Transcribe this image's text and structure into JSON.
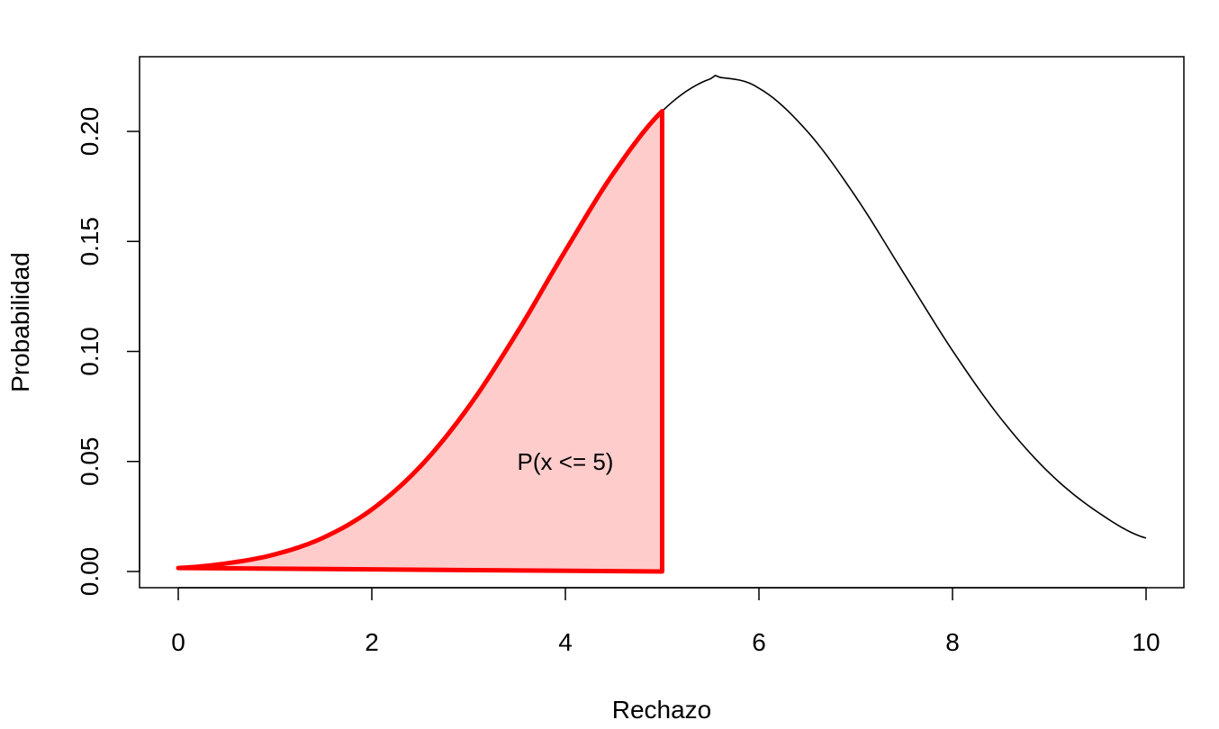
{
  "chart_data": {
    "type": "area",
    "xlabel": "Rechazo",
    "ylabel": "Probabilidad",
    "xlim": [
      0,
      10
    ],
    "ylim": [
      0,
      0.225
    ],
    "x_ticks": [
      {
        "value": 0,
        "label": "0"
      },
      {
        "value": 2,
        "label": "2"
      },
      {
        "value": 4,
        "label": "4"
      },
      {
        "value": 6,
        "label": "6"
      },
      {
        "value": 8,
        "label": "8"
      },
      {
        "value": 10,
        "label": "10"
      }
    ],
    "y_ticks": [
      {
        "value": 0.0,
        "label": "0.00"
      },
      {
        "value": 0.05,
        "label": "0.05"
      },
      {
        "value": 0.1,
        "label": "0.10"
      },
      {
        "value": 0.15,
        "label": "0.15"
      },
      {
        "value": 0.2,
        "label": "0.20"
      }
    ],
    "grid": false,
    "series": [
      {
        "role": "density-curve",
        "color": "#000000",
        "x": [
          0,
          0.5,
          1,
          1.5,
          2,
          2.5,
          3,
          3.5,
          4,
          4.5,
          5,
          5.5,
          5.6,
          6,
          6.5,
          7,
          7.5,
          8,
          8.5,
          9,
          9.5,
          10
        ],
        "y": [
          0.0016,
          0.0037,
          0.0078,
          0.0154,
          0.0282,
          0.0477,
          0.0748,
          0.1085,
          0.1458,
          0.1812,
          0.2092,
          0.2239,
          0.2245,
          0.2196,
          0.2,
          0.1703,
          0.1353,
          0.1004,
          0.0695,
          0.0448,
          0.027,
          0.0152
        ]
      },
      {
        "role": "shaded-region",
        "color": "#ff0000",
        "fill": "#ffcccc",
        "x_range": [
          0,
          5
        ]
      }
    ],
    "annotations": [
      {
        "text": "P(x <= 5)",
        "x": 4.0,
        "y": 0.05
      }
    ]
  }
}
